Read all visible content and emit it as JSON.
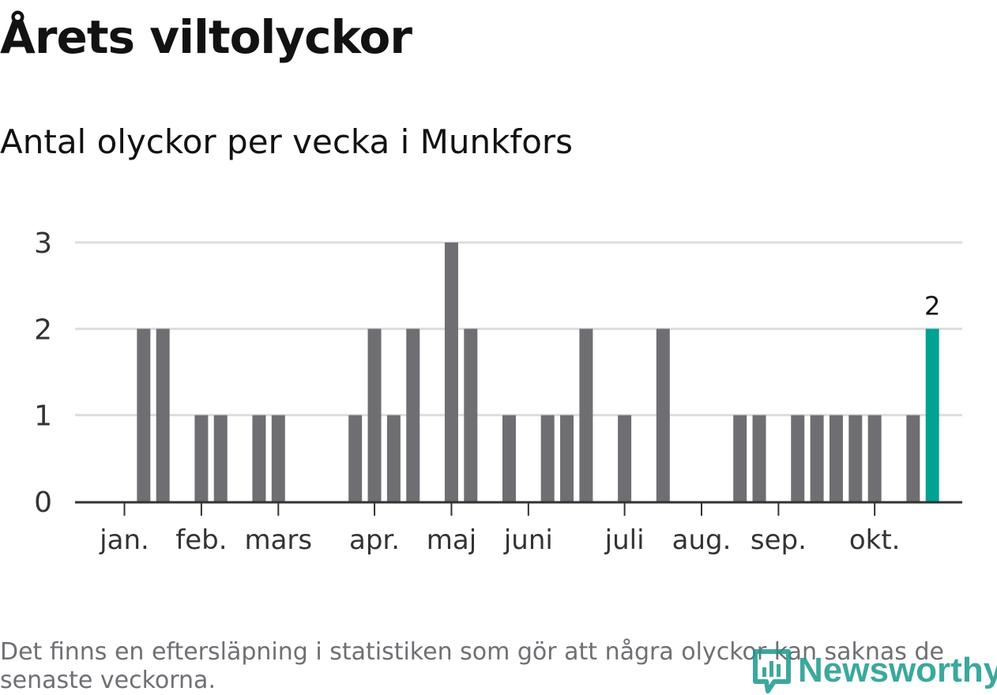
{
  "chart_data": {
    "type": "bar",
    "title": "Årets viltolyckor",
    "subtitle": "Antal olyckor per vecka i Munkfors",
    "note": "Det finns en eftersläpning i statistiken som gör att några olyckor kan saknas de senaste veckorna.",
    "ylim": [
      0,
      3
    ],
    "yticks": [
      0,
      1,
      2,
      3
    ],
    "grid": true,
    "x": [
      1,
      2,
      3,
      4,
      5,
      6,
      7,
      8,
      9,
      10,
      11,
      12,
      13,
      14,
      15,
      16,
      17,
      18,
      19,
      20,
      21,
      22,
      23,
      24,
      25,
      26,
      27,
      28,
      29,
      30,
      31,
      32,
      33,
      34,
      35,
      36,
      37,
      38,
      39,
      40,
      41,
      42,
      43
    ],
    "values": [
      0,
      2,
      2,
      0,
      1,
      1,
      0,
      1,
      1,
      0,
      0,
      0,
      1,
      2,
      1,
      2,
      0,
      3,
      2,
      0,
      1,
      0,
      1,
      1,
      2,
      0,
      1,
      0,
      2,
      0,
      0,
      0,
      1,
      1,
      0,
      1,
      1,
      1,
      1,
      1,
      0,
      1,
      2
    ],
    "highlight_index": 42,
    "highlight_label": "2",
    "colors": {
      "bar": "#6f6e73",
      "highlight": "#00a294",
      "grid": "#dddddd",
      "axis": "#333333",
      "text": "#333333"
    },
    "month_ticks": [
      {
        "label": "jan.",
        "week": 1
      },
      {
        "label": "feb.",
        "week": 5
      },
      {
        "label": "mars",
        "week": 9
      },
      {
        "label": "apr.",
        "week": 14
      },
      {
        "label": "maj",
        "week": 18
      },
      {
        "label": "juni",
        "week": 22
      },
      {
        "label": "juli",
        "week": 27
      },
      {
        "label": "aug.",
        "week": 31
      },
      {
        "label": "sep.",
        "week": 35
      },
      {
        "label": "okt.",
        "week": 40
      }
    ]
  },
  "brand": {
    "name": "Newsworthy",
    "icon": "newsworthy-logo-icon",
    "color": "#1a9a8e"
  }
}
